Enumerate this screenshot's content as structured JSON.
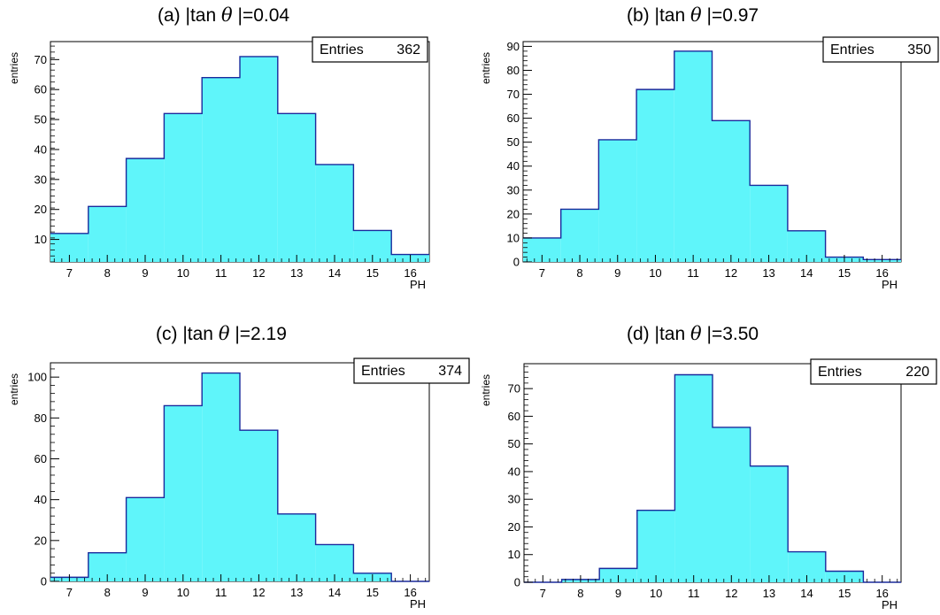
{
  "x_ticks": [
    "7",
    "8",
    "9",
    "10",
    "11",
    "12",
    "13",
    "14",
    "15",
    "16"
  ],
  "x_range": [
    6.5,
    16.5
  ],
  "bin_edges": [
    6.5,
    7.5,
    8.5,
    9.5,
    10.5,
    11.5,
    12.5,
    13.5,
    14.5,
    15.5,
    16.5
  ],
  "fill_color": "#5ff5fa",
  "line_color": "#1a2a9c",
  "chart_data": [
    {
      "type": "bar",
      "title_prefix": "(a) |tan",
      "title_symbol": "θ",
      "title_suffix": "|=0.04",
      "xlabel": "PH",
      "ylabel": "entries",
      "stats_label": "Entries",
      "stats_value": "362",
      "categories": [
        "7",
        "8",
        "9",
        "10",
        "11",
        "12",
        "13",
        "14",
        "15",
        "16"
      ],
      "values": [
        12,
        21,
        37,
        52,
        64,
        71,
        52,
        35,
        13,
        5
      ],
      "ylim": [
        2.5,
        76
      ],
      "yticks": [
        "10",
        "20",
        "30",
        "40",
        "50",
        "60",
        "70"
      ]
    },
    {
      "type": "bar",
      "title_prefix": "(b) |tan",
      "title_symbol": "θ",
      "title_suffix": "|=0.97",
      "xlabel": "PH",
      "ylabel": "entries",
      "stats_label": "Entries",
      "stats_value": "350",
      "categories": [
        "7",
        "8",
        "9",
        "10",
        "11",
        "12",
        "13",
        "14",
        "15",
        "16"
      ],
      "values": [
        10,
        22,
        51,
        72,
        88,
        59,
        32,
        13,
        2,
        1
      ],
      "ylim": [
        0,
        92
      ],
      "yticks": [
        "0",
        "10",
        "20",
        "30",
        "40",
        "50",
        "60",
        "70",
        "80",
        "90"
      ]
    },
    {
      "type": "bar",
      "title_prefix": "(c) |tan",
      "title_symbol": "θ",
      "title_suffix": "|=2.19",
      "xlabel": "PH",
      "ylabel": "entries",
      "stats_label": "Entries",
      "stats_value": "374",
      "categories": [
        "7",
        "8",
        "9",
        "10",
        "11",
        "12",
        "13",
        "14",
        "15",
        "16"
      ],
      "values": [
        2,
        14,
        41,
        86,
        102,
        74,
        33,
        18,
        4,
        0
      ],
      "ylim": [
        0,
        107
      ],
      "yticks": [
        "0",
        "20",
        "40",
        "60",
        "80",
        "100"
      ]
    },
    {
      "type": "bar",
      "title_prefix": "(d) |tan",
      "title_symbol": "θ",
      "title_suffix": "|=3.50",
      "xlabel": "PH",
      "ylabel": "entries",
      "stats_label": "Entries",
      "stats_value": "220",
      "categories": [
        "7",
        "8",
        "9",
        "10",
        "11",
        "12",
        "13",
        "14",
        "15",
        "16"
      ],
      "values": [
        0,
        1,
        5,
        26,
        75,
        56,
        42,
        11,
        4,
        0
      ],
      "ylim": [
        0,
        79
      ],
      "yticks": [
        "0",
        "10",
        "20",
        "30",
        "40",
        "50",
        "60",
        "70"
      ]
    }
  ]
}
